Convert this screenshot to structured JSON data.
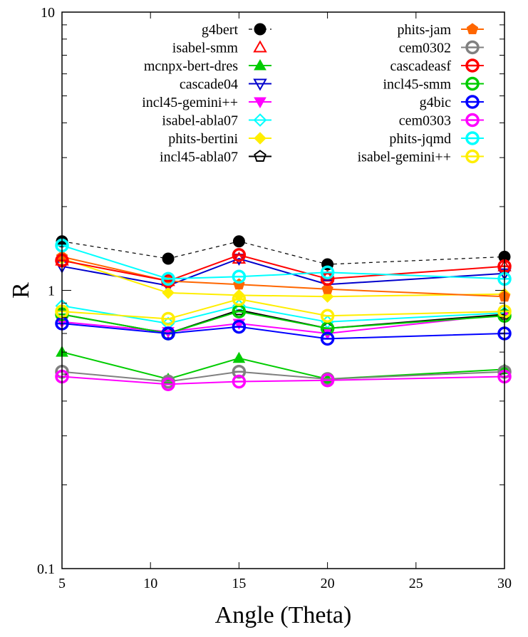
{
  "chart_data": {
    "type": "line",
    "title": "",
    "xlabel": "Angle (Theta)",
    "ylabel": "R",
    "x_scale": "linear",
    "y_scale": "log",
    "xlim": [
      5,
      30
    ],
    "ylim": [
      0.1,
      10
    ],
    "x_ticks": [
      "5",
      "10",
      "15",
      "20",
      "25",
      "30"
    ],
    "y_ticks": [
      "0.1",
      "1",
      "10"
    ],
    "grid": false,
    "legend_position": "top, two columns",
    "x": [
      5,
      11,
      15,
      20,
      30
    ],
    "series": [
      {
        "name": "g4bert",
        "color": "#000000",
        "marker": "filled-circle",
        "line": "dashed",
        "values": [
          1.5,
          1.3,
          1.5,
          1.24,
          1.32
        ]
      },
      {
        "name": "isabel-smm",
        "color": "#ff0000",
        "marker": "open-triangle-up",
        "line": "none",
        "values": [
          1.28,
          1.08,
          1.3,
          1.12,
          1.22
        ]
      },
      {
        "name": "mcnpx-bert-dres",
        "color": "#00cc00",
        "marker": "filled-triangle-up",
        "line": "solid",
        "values": [
          0.6,
          0.48,
          0.57,
          0.48,
          0.52
        ]
      },
      {
        "name": "cascade04",
        "color": "#0000cc",
        "marker": "open-triangle-down",
        "line": "solid",
        "values": [
          1.22,
          1.04,
          1.3,
          1.05,
          1.15
        ]
      },
      {
        "name": "incl45-gemini++",
        "color": "#ff00ff",
        "marker": "filled-triangle-down",
        "line": "solid",
        "values": [
          0.77,
          0.71,
          0.76,
          0.7,
          0.82
        ]
      },
      {
        "name": "isabel-abla07",
        "color": "#00ffff",
        "marker": "open-diamond",
        "line": "solid",
        "values": [
          0.88,
          0.76,
          0.88,
          0.77,
          0.83
        ]
      },
      {
        "name": "phits-bertini",
        "color": "#ffee00",
        "marker": "filled-diamond",
        "line": "solid",
        "values": [
          1.3,
          0.98,
          0.96,
          0.95,
          0.97
        ]
      },
      {
        "name": "incl45-abla07",
        "color": "#000000",
        "marker": "open-pentagon",
        "line": "solid",
        "values": [
          0.82,
          0.7,
          0.85,
          0.73,
          0.82
        ]
      },
      {
        "name": "phits-jam",
        "color": "#ff6600",
        "marker": "filled-pentagon",
        "line": "solid",
        "values": [
          1.32,
          1.08,
          1.05,
          1.01,
          0.95
        ]
      },
      {
        "name": "cem0302",
        "color": "#808080",
        "marker": "open-circle-dot",
        "line": "solid",
        "values": [
          0.51,
          0.47,
          0.51,
          0.48,
          0.51
        ]
      },
      {
        "name": "cascadeasf",
        "color": "#ff0000",
        "marker": "open-circle-dot",
        "line": "solid",
        "values": [
          1.28,
          1.08,
          1.34,
          1.1,
          1.22
        ]
      },
      {
        "name": "incl45-smm",
        "color": "#00cc00",
        "marker": "open-circle-dot",
        "line": "solid",
        "values": [
          0.82,
          0.7,
          0.84,
          0.73,
          0.81
        ]
      },
      {
        "name": "g4bic",
        "color": "#0000ff",
        "marker": "open-circle-dot",
        "line": "solid",
        "values": [
          0.76,
          0.7,
          0.74,
          0.67,
          0.7
        ]
      },
      {
        "name": "cem0303",
        "color": "#ff00ff",
        "marker": "open-circle-dot",
        "line": "solid",
        "values": [
          0.49,
          0.46,
          0.47,
          0.475,
          0.49
        ]
      },
      {
        "name": "phits-jqmd",
        "color": "#00ffff",
        "marker": "open-circle-dot",
        "line": "solid",
        "values": [
          1.45,
          1.1,
          1.12,
          1.16,
          1.1
        ]
      },
      {
        "name": "isabel-gemini++",
        "color": "#ffee00",
        "marker": "open-circle-dot",
        "line": "solid",
        "values": [
          0.84,
          0.79,
          0.93,
          0.81,
          0.84
        ]
      }
    ]
  }
}
